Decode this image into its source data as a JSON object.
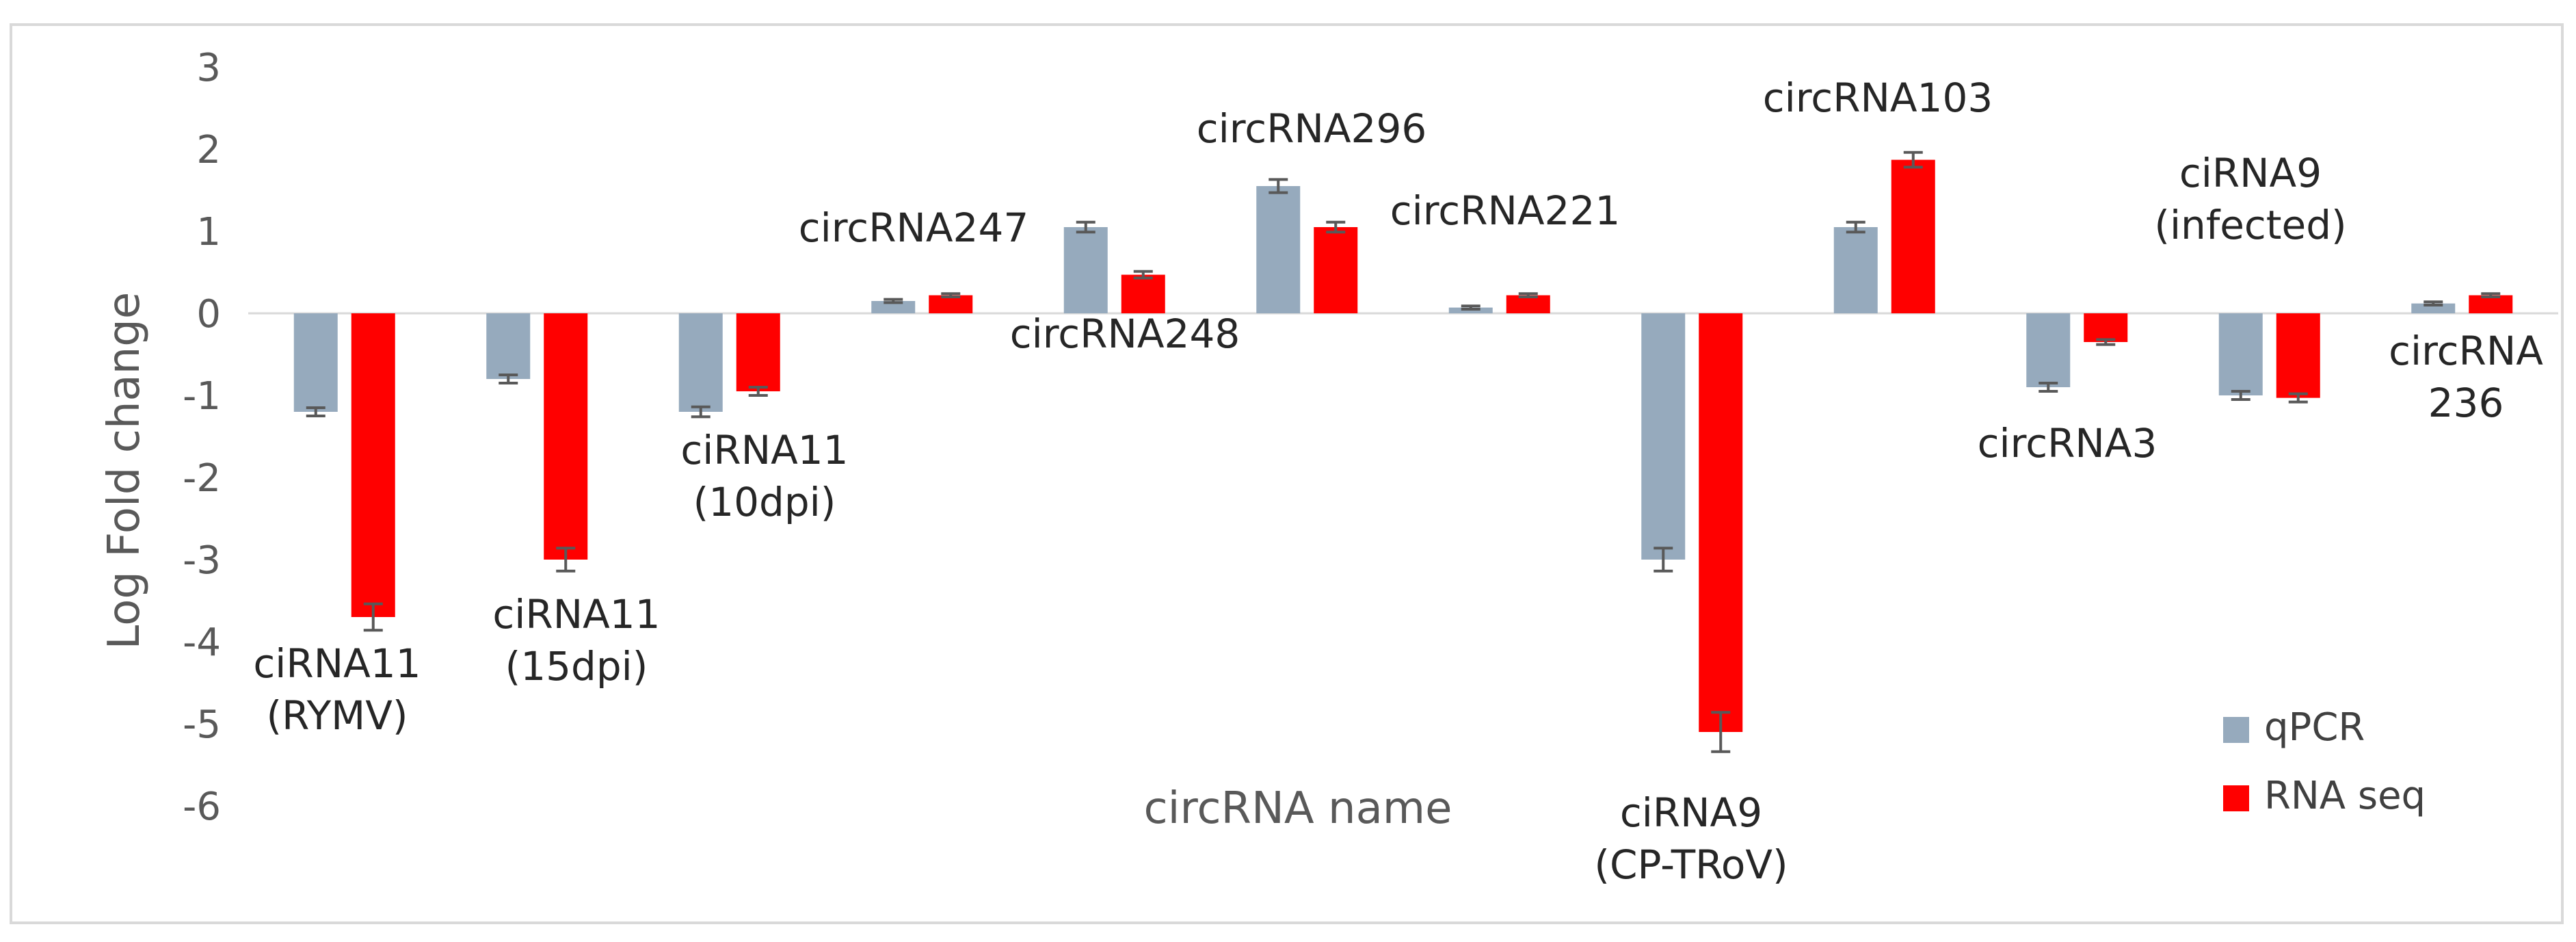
{
  "chart_data": {
    "type": "bar",
    "xlabel": "circRNA name",
    "ylabel": "Log Fold change",
    "ylim": [
      -6,
      3
    ],
    "yticks": [
      "3",
      "2",
      "1",
      "0",
      "-1",
      "-2",
      "-3",
      "-4",
      "-5",
      "-6"
    ],
    "grid": false,
    "legend_position": "bottom-right",
    "categories": [
      [
        "ciRNA11",
        "(RYMV)"
      ],
      [
        "ciRNA11",
        "(15dpi)"
      ],
      [
        "ciRNA11",
        "(10dpi)"
      ],
      [
        "circRNA247"
      ],
      [
        "circRNA248"
      ],
      [
        "circRNA296"
      ],
      [
        "circRNA221"
      ],
      [
        "ciRNA9",
        "(CP-TRoV)"
      ],
      [
        "circRNA103"
      ],
      [
        "circRNA3"
      ],
      [
        "ciRNA9",
        "(infected)"
      ],
      [
        "circRNA",
        "236"
      ]
    ],
    "series": [
      {
        "name": "qPCR",
        "color": "#96aabd",
        "values": [
          -1.2,
          -0.8,
          -1.2,
          0.15,
          1.05,
          1.55,
          0.07,
          -3.0,
          1.05,
          -0.9,
          -1.0,
          0.12
        ],
        "errors": [
          0.05,
          0.05,
          0.06,
          0.02,
          0.06,
          0.08,
          0.02,
          0.14,
          0.06,
          0.05,
          0.05,
          0.02
        ]
      },
      {
        "name": "RNA seq",
        "color": "#ff0000",
        "values": [
          -3.7,
          -3.0,
          -0.95,
          0.22,
          0.47,
          1.05,
          0.22,
          -5.1,
          1.87,
          -0.35,
          -1.03,
          0.22
        ],
        "errors": [
          0.16,
          0.14,
          0.05,
          0.02,
          0.04,
          0.06,
          0.02,
          0.24,
          0.09,
          0.03,
          0.05,
          0.02
        ]
      }
    ],
    "legend": [
      {
        "label": "qPCR",
        "color": "#96aabd"
      },
      {
        "label": "RNA seq",
        "color": "#ff0000"
      }
    ]
  }
}
